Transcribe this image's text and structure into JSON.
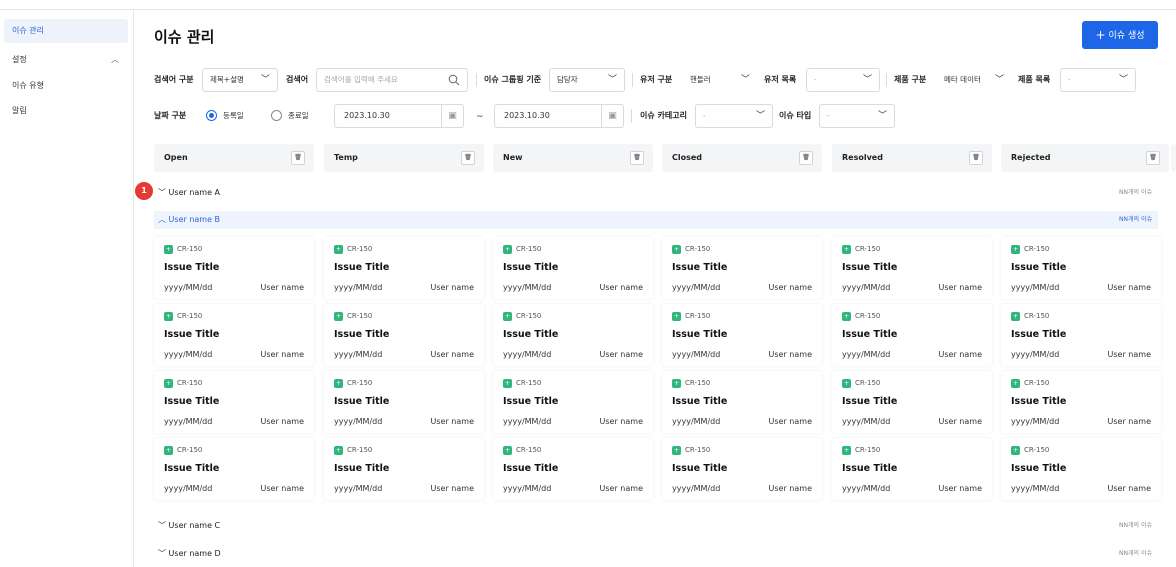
{
  "sidebar": {
    "items": [
      {
        "label": "이슈 관리"
      },
      {
        "label": "설정"
      },
      {
        "label": "이슈 유형"
      },
      {
        "label": "알림"
      }
    ]
  },
  "header": {
    "title": "이슈 관리",
    "create_label": "이슈 생성"
  },
  "filters": {
    "search_type_label": "검색어 구분",
    "search_type_value": "제목+설명",
    "search_label": "검색어",
    "search_placeholder": "검색어를 입력해 주세요",
    "grouping_label": "이슈 그룹핑 기준",
    "grouping_value": "담당자",
    "user_type_label": "유저 구분",
    "user_type_value": "핸들러",
    "user_list_label": "유저 목록",
    "user_list_value": "-",
    "product_type_label": "제품 구분",
    "product_type_value": "메타 데이터",
    "product_list_label": "제품 목록",
    "product_list_value": "-",
    "date_type_label": "날짜 구분",
    "radio_registered": "등록일",
    "radio_end": "종료일",
    "date_from": "2023.10.30",
    "date_tilde": "~",
    "date_to": "2023.10.30",
    "category_label": "이슈 카테고리",
    "category_value": "-",
    "type_label": "이슈 타입",
    "type_value": "-"
  },
  "columns": [
    {
      "label": "Open"
    },
    {
      "label": "Temp"
    },
    {
      "label": "New"
    },
    {
      "label": "Closed"
    },
    {
      "label": "Resolved"
    },
    {
      "label": "Rejected"
    }
  ],
  "groups": {
    "badge": "1",
    "a": {
      "name": "User name A",
      "count": "NN개의 이슈"
    },
    "b": {
      "name": "User name B",
      "count": "NN개의 이슈"
    },
    "c": {
      "name": "User name C",
      "count": "NN개의 이슈"
    },
    "d": {
      "name": "User name D",
      "count": "NN개의 이슈"
    }
  },
  "card": {
    "key": "CR-150",
    "title": "Issue Title",
    "date": "yyyy/MM/dd",
    "user": "User name"
  },
  "colors": {
    "accent": "#1e66e8",
    "badge": "#e53935",
    "issue_icon": "#2fb67c"
  }
}
